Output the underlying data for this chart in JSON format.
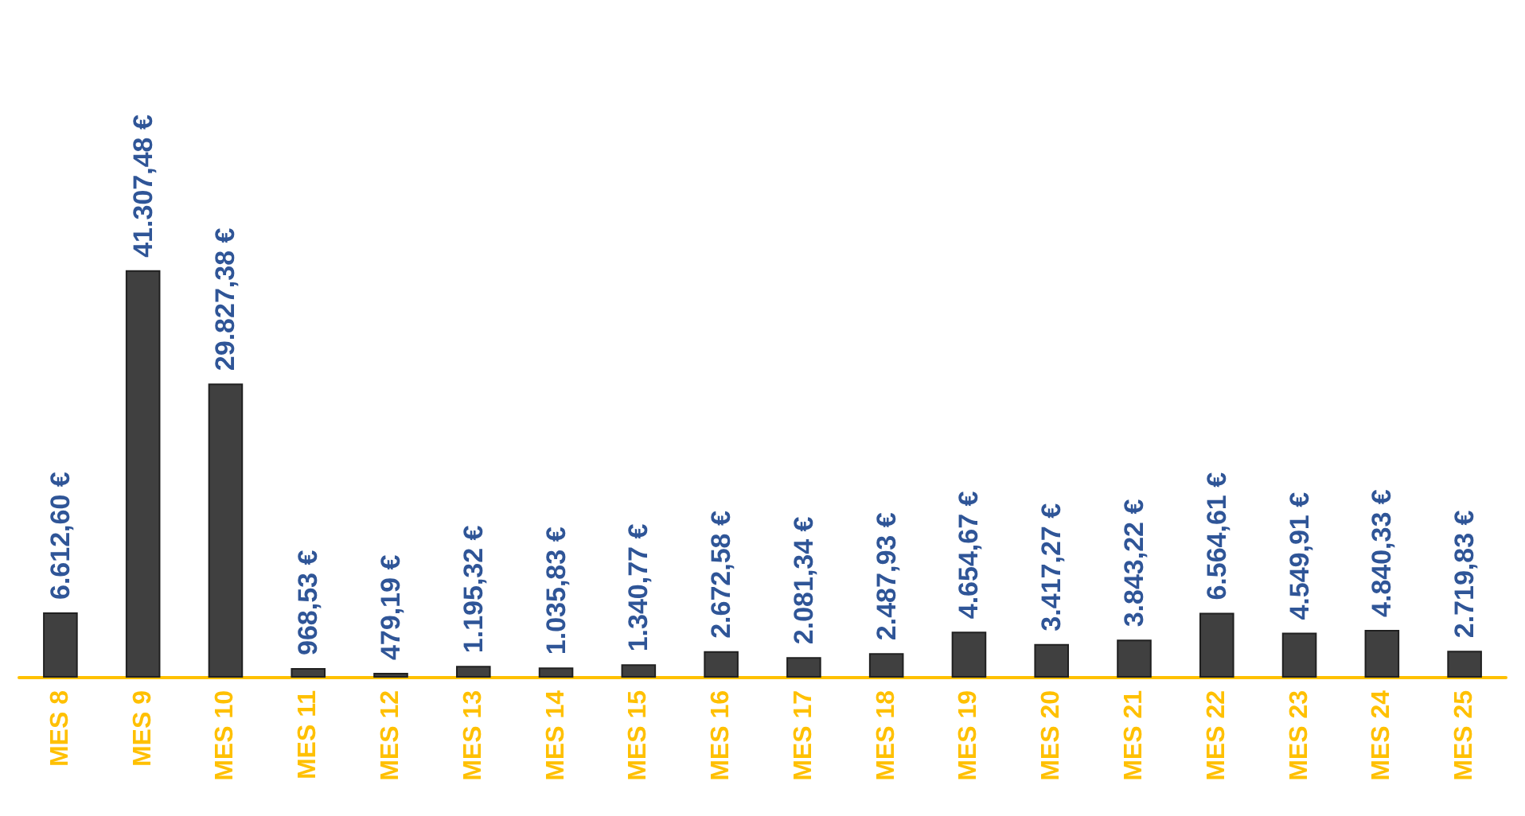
{
  "chart_data": {
    "type": "bar",
    "categories": [
      "MES 8",
      "MES 9",
      "MES 10",
      "MES 11",
      "MES 12",
      "MES 13",
      "MES 14",
      "MES 15",
      "MES 16",
      "MES 17",
      "MES 18",
      "MES 19",
      "MES 20",
      "MES 21",
      "MES 22",
      "MES 23",
      "MES 24",
      "MES 25"
    ],
    "values": [
      6612.6,
      41307.48,
      29827.38,
      968.53,
      479.19,
      1195.32,
      1035.83,
      1340.77,
      2672.58,
      2081.34,
      2487.93,
      4654.67,
      3417.27,
      3843.22,
      6564.61,
      4549.91,
      4840.33,
      2719.83
    ],
    "value_labels": [
      "6.612,60 €",
      "41.307,48 €",
      "29.827,38 €",
      "968,53 €",
      "479,19 €",
      "1.195,32 €",
      "1.035,83 €",
      "1.340,77 €",
      "2.672,58 €",
      "2.081,34 €",
      "2.487,93 €",
      "4.654,67 €",
      "3.417,27 €",
      "3.843,22 €",
      "6.564,61 €",
      "4.549,91 €",
      "4.840,33 €",
      "2.719,83 €"
    ],
    "color": "#404040"
  }
}
